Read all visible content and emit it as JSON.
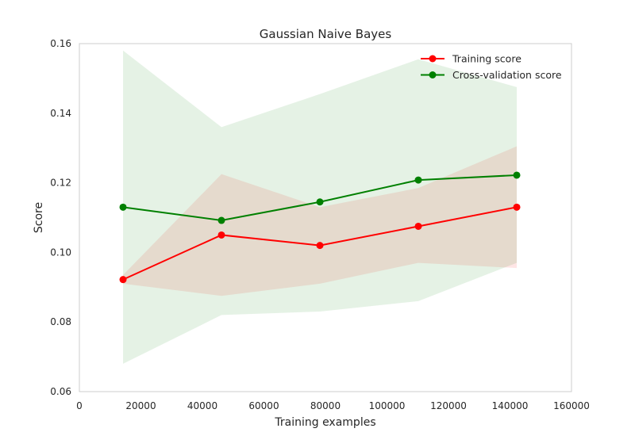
{
  "chart_data": {
    "type": "line",
    "title": "Gaussian Naive Bayes",
    "xlabel": "Training examples",
    "ylabel": "Score",
    "xlim": [
      0,
      160000
    ],
    "ylim": [
      0.06,
      0.16
    ],
    "xticks": [
      0,
      20000,
      40000,
      60000,
      80000,
      100000,
      120000,
      140000,
      160000
    ],
    "yticks": [
      0.06,
      0.08,
      0.1,
      0.12,
      0.14,
      0.16
    ],
    "xtick_labels": [
      "0",
      "20000",
      "40000",
      "60000",
      "80000",
      "100000",
      "120000",
      "140000",
      "160000"
    ],
    "ytick_labels": [
      "0.06",
      "0.08",
      "0.10",
      "0.12",
      "0.14",
      "0.16"
    ],
    "grid": false,
    "legend_position": "top-right",
    "x": [
      14200,
      46200,
      78200,
      110200,
      142200
    ],
    "series": [
      {
        "name": "Training score",
        "color": "#ff0000",
        "values": [
          0.0922,
          0.105,
          0.102,
          0.1075,
          0.113
        ],
        "band_lower": [
          0.091,
          0.0875,
          0.091,
          0.097,
          0.0955
        ],
        "band_upper": [
          0.0935,
          0.1225,
          0.113,
          0.1185,
          0.1305
        ],
        "band_color": "#ff0000"
      },
      {
        "name": "Cross-validation score",
        "color": "#008000",
        "values": [
          0.113,
          0.1092,
          0.1145,
          0.1208,
          0.1222
        ],
        "band_lower": [
          0.068,
          0.082,
          0.083,
          0.086,
          0.097
        ],
        "band_upper": [
          0.158,
          0.136,
          0.1455,
          0.1555,
          0.1475
        ],
        "band_color": "#008000"
      }
    ]
  }
}
